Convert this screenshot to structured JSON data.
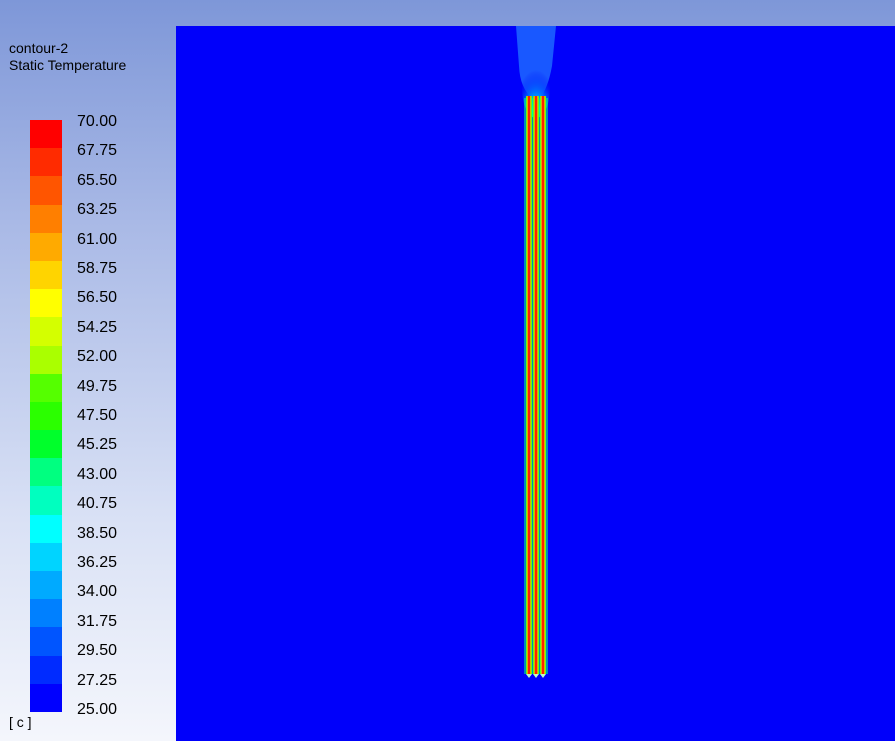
{
  "legend": {
    "title": "contour-2",
    "variable": "Static Temperature",
    "units": "[ c ]",
    "labels": [
      "70.00",
      "67.75",
      "65.50",
      "63.25",
      "61.00",
      "58.75",
      "56.50",
      "54.25",
      "52.00",
      "49.75",
      "47.50",
      "45.25",
      "43.00",
      "40.75",
      "38.50",
      "36.25",
      "34.00",
      "31.75",
      "29.50",
      "27.25",
      "25.00"
    ]
  },
  "colors": {
    "bands": [
      "#ff0000",
      "#ff2b00",
      "#ff5500",
      "#ff7f00",
      "#ffaa00",
      "#ffd400",
      "#ffff00",
      "#d4ff00",
      "#aaff00",
      "#55ff00",
      "#2bff00",
      "#00ff2b",
      "#00ff80",
      "#00ffbf",
      "#00ffff",
      "#00d4ff",
      "#00aaff",
      "#0080ff",
      "#0055ff",
      "#002bff",
      "#0000ff"
    ],
    "domain_background": "#0000fa"
  },
  "contour": {
    "min": 25.0,
    "max": 70.0,
    "unit": "c"
  }
}
